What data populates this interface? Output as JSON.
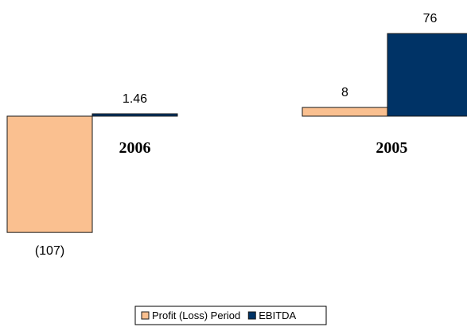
{
  "chart_data": {
    "type": "bar",
    "categories": [
      "2006",
      "2005"
    ],
    "series": [
      {
        "name": "Profit (Loss) Period",
        "values": [
          -107,
          8
        ],
        "labels": [
          "(107)",
          "8"
        ],
        "color": "#FAC090"
      },
      {
        "name": "EBITDA",
        "values": [
          1.46,
          76
        ],
        "labels": [
          "1.46",
          "76"
        ],
        "color": "#003366"
      }
    ],
    "title": "",
    "xlabel": "",
    "ylabel": "",
    "grid": false,
    "legend_position": "bottom"
  }
}
